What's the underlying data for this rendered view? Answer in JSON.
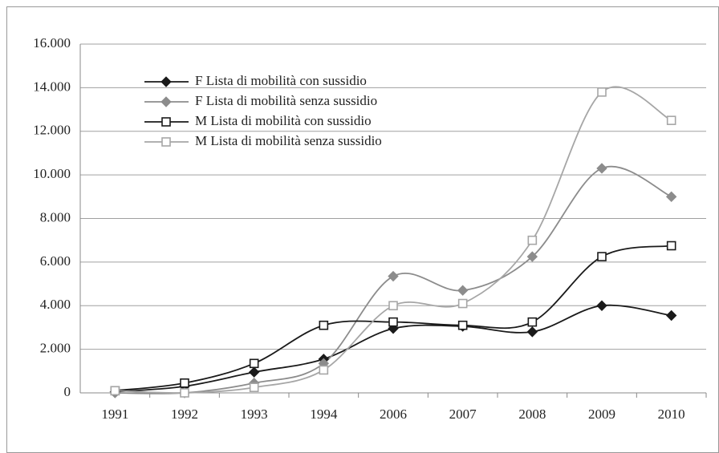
{
  "chart_data": {
    "type": "line",
    "smooth": true,
    "grid": true,
    "legend": "upper left",
    "categories": [
      "1991",
      "1992",
      "1993",
      "1994",
      "2006",
      "2007",
      "2008",
      "2009",
      "2010"
    ],
    "ylim": [
      0,
      16000
    ],
    "yticks": [
      {
        "value": 0,
        "label": "0"
      },
      {
        "value": 2000,
        "label": "2.000"
      },
      {
        "value": 4000,
        "label": "4.000"
      },
      {
        "value": 6000,
        "label": "6.000"
      },
      {
        "value": 8000,
        "label": "8.000"
      },
      {
        "value": 10000,
        "label": "10.000"
      },
      {
        "value": 12000,
        "label": "12.000"
      },
      {
        "value": 14000,
        "label": "14.000"
      },
      {
        "value": 16000,
        "label": "16.000"
      }
    ],
    "series": [
      {
        "name": "F Lista di mobilità con sussidio",
        "color": "#1a1a1a",
        "marker": "diamond",
        "values": [
          50,
          300,
          950,
          1550,
          2950,
          3050,
          2800,
          4000,
          3550
        ]
      },
      {
        "name": "F Lista di mobilità senza sussidio",
        "color": "#8c8c8c",
        "marker": "diamond",
        "values": [
          0,
          0,
          450,
          1350,
          5350,
          4700,
          6250,
          10300,
          9000
        ]
      },
      {
        "name": "M Lista di mobilità con sussidio",
        "color": "#1a1a1a",
        "marker": "square",
        "values": [
          100,
          450,
          1350,
          3100,
          3250,
          3100,
          3250,
          6250,
          6750
        ]
      },
      {
        "name": "M Lista di mobilità senza sussidio",
        "color": "#a6a6a6",
        "marker": "square",
        "values": [
          100,
          0,
          250,
          1050,
          4000,
          4100,
          7000,
          13800,
          12500
        ]
      }
    ]
  }
}
